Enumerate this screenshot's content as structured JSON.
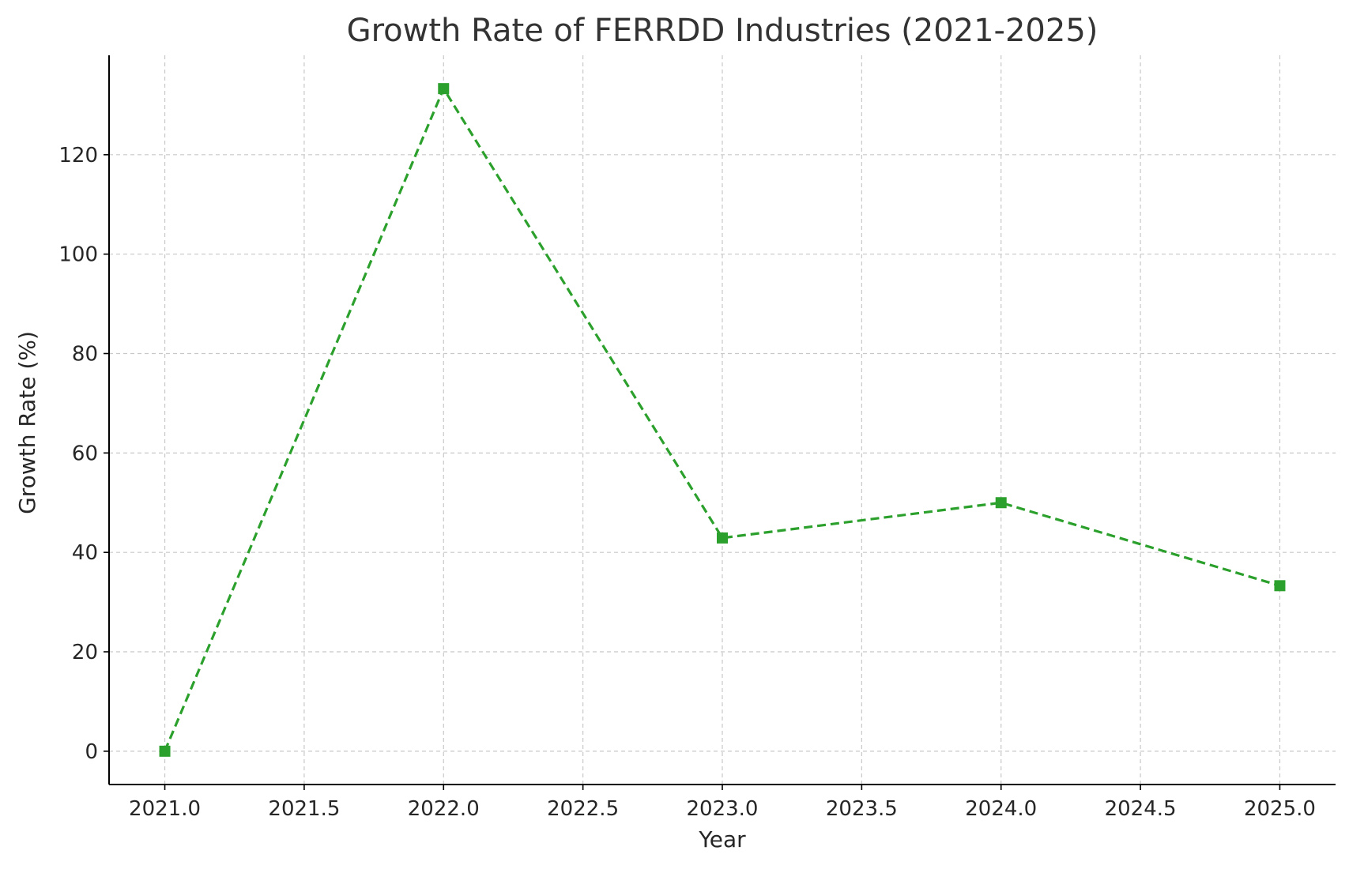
{
  "chart_data": {
    "type": "line",
    "title": "Growth Rate of FERRDD Industries (2021-2025)",
    "xlabel": "Year",
    "ylabel": "Growth Rate (%)",
    "x": [
      2021,
      2022,
      2023,
      2024,
      2025
    ],
    "series": [
      {
        "values": [
          0,
          133.3,
          42.9,
          50.0,
          33.3
        ],
        "color": "#2ca02c",
        "line_style": "dashed",
        "marker": "square"
      }
    ],
    "xlim": [
      2020.8,
      2025.2
    ],
    "ylim": [
      -6.7,
      140
    ],
    "x_ticks": [
      2021.0,
      2021.5,
      2022.0,
      2022.5,
      2023.0,
      2023.5,
      2024.0,
      2024.5,
      2025.0
    ],
    "x_tick_labels": [
      "2021.0",
      "2021.5",
      "2022.0",
      "2022.5",
      "2023.0",
      "2023.5",
      "2024.0",
      "2024.5",
      "2025.0"
    ],
    "y_ticks": [
      0,
      20,
      40,
      60,
      80,
      100,
      120
    ],
    "y_tick_labels": [
      "0",
      "20",
      "40",
      "60",
      "80",
      "100",
      "120"
    ],
    "grid": true,
    "grid_style": "dashed",
    "grid_color": "#c8c8c8",
    "axis_color": "#000000"
  }
}
